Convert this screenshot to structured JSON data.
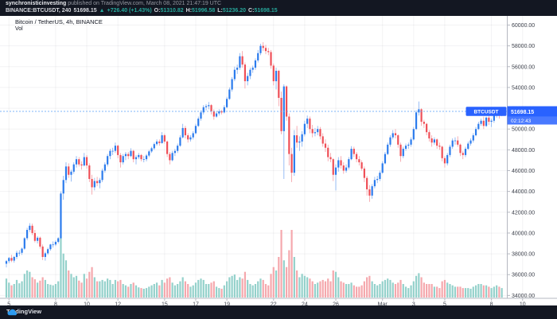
{
  "header": {
    "username": "synchronisticinvesting",
    "attribution": " published on TradingView.com, March 08, 2021 21:47:19 UTC",
    "symbol_interval": "BINANCE:BTCUSDT, 240",
    "last_price": "51698.15",
    "arrow": "▲",
    "change": "+726.40 (+1.43%)",
    "o_label": "O:",
    "o_value": "51310.82",
    "h_label": "H:",
    "h_value": "51996.58",
    "l_label": "L:",
    "l_value": "51236.20",
    "c_label": "C:",
    "c_value": "51698.15"
  },
  "chart": {
    "legend": "Bitcoin / TetherUS, 4h, BINANCE",
    "vol_label": "Vol",
    "price_label": {
      "tag": "BTCUSDT",
      "price": "51698.15",
      "countdown": "02:12:43"
    },
    "colors": {
      "accent": "#2962ff",
      "up_body": "#2b7bed",
      "up_wick": "#7fadf2",
      "down_body": "#ef4f57",
      "down_wick": "#f49ba2",
      "vol_up": "#94d1cb",
      "vol_down": "#f5a8ad",
      "grid": "rgba(19,23,34,0.05)",
      "axis_line": "#b5b8c1",
      "axis_text": "#3b3f4a",
      "last_line": "#60a5f7",
      "teal": "#26a69a"
    }
  },
  "footer": {
    "brand": "TradingView"
  },
  "chart_data": {
    "type": "candlestick+volume",
    "symbol": "BTCUSDT",
    "exchange": "BINANCE",
    "interval": "4h",
    "title": "Bitcoin / TetherUS, 4h, BINANCE",
    "last_price": 51698.15,
    "countdown": "02:12:43",
    "y_axis": {
      "min": 34000,
      "max": 60000,
      "tick_step": 2000
    },
    "y_tick_labels": [
      "60000.00",
      "58000.00",
      "56000.00",
      "54000.00",
      "52000.00",
      "50000.00",
      "48000.00",
      "46000.00",
      "44000.00",
      "42000.00",
      "40000.00",
      "38000.00",
      "36000.00",
      "34000.00"
    ],
    "x_ticks": [
      {
        "label": "5",
        "idx": 1
      },
      {
        "label": "8",
        "idx": 19
      },
      {
        "label": "10",
        "idx": 31
      },
      {
        "label": "12",
        "idx": 43
      },
      {
        "label": "15",
        "idx": 61
      },
      {
        "label": "17",
        "idx": 73
      },
      {
        "label": "19",
        "idx": 85
      },
      {
        "label": "22",
        "idx": 103
      },
      {
        "label": "24",
        "idx": 115
      },
      {
        "label": "26",
        "idx": 127
      },
      {
        "label": "Mar",
        "idx": 145
      },
      {
        "label": "3",
        "idx": 157
      },
      {
        "label": "5",
        "idx": 169
      },
      {
        "label": "8",
        "idx": 187
      },
      {
        "label": "10",
        "idx": 199
      }
    ],
    "candles_format": [
      "open",
      "high",
      "low",
      "close",
      "rel_volume"
    ],
    "candles": [
      [
        37050,
        37400,
        36700,
        37300,
        28
      ],
      [
        37300,
        37700,
        37100,
        37600,
        22
      ],
      [
        37600,
        37900,
        37200,
        37350,
        18
      ],
      [
        37350,
        37800,
        37150,
        37700,
        20
      ],
      [
        37700,
        38300,
        37500,
        38100,
        26
      ],
      [
        38100,
        38350,
        37800,
        38100,
        21
      ],
      [
        38100,
        38600,
        37900,
        38500,
        24
      ],
      [
        38500,
        39600,
        38400,
        39500,
        35
      ],
      [
        39500,
        40500,
        39300,
        40300,
        40
      ],
      [
        40300,
        40950,
        40100,
        40700,
        38
      ],
      [
        40700,
        40900,
        39800,
        40000,
        30
      ],
      [
        40000,
        40300,
        39100,
        39250,
        27
      ],
      [
        39250,
        39700,
        39000,
        39550,
        22
      ],
      [
        39550,
        39650,
        38500,
        38700,
        25
      ],
      [
        38700,
        38900,
        37400,
        37700,
        30
      ],
      [
        37700,
        38200,
        37350,
        38050,
        26
      ],
      [
        38050,
        38600,
        37900,
        38450,
        20
      ],
      [
        38450,
        38950,
        38300,
        38900,
        19
      ],
      [
        38900,
        39200,
        38600,
        38900,
        18
      ],
      [
        38900,
        39300,
        38750,
        39150,
        20
      ],
      [
        39150,
        39600,
        39000,
        39500,
        24
      ],
      [
        39500,
        44000,
        39400,
        43800,
        90
      ],
      [
        43800,
        45500,
        43200,
        45100,
        65
      ],
      [
        45100,
        46800,
        44800,
        46400,
        55
      ],
      [
        46400,
        46700,
        45300,
        45600,
        40
      ],
      [
        45600,
        46100,
        44950,
        45900,
        35
      ],
      [
        45900,
        46800,
        45700,
        46600,
        30
      ],
      [
        46600,
        47400,
        46300,
        47100,
        32
      ],
      [
        47100,
        47300,
        46400,
        46600,
        25
      ],
      [
        46600,
        46900,
        46100,
        46500,
        22
      ],
      [
        46500,
        47700,
        46400,
        47300,
        35
      ],
      [
        47300,
        47500,
        46200,
        46500,
        28
      ],
      [
        46500,
        46700,
        44900,
        45200,
        38
      ],
      [
        45200,
        45600,
        43700,
        44400,
        45
      ],
      [
        44400,
        45300,
        44100,
        45000,
        30
      ],
      [
        45000,
        45400,
        44500,
        44800,
        24
      ],
      [
        44800,
        45300,
        44300,
        45100,
        24
      ],
      [
        45100,
        46200,
        44900,
        46000,
        26
      ],
      [
        46000,
        46800,
        45800,
        46600,
        24
      ],
      [
        46600,
        47600,
        46400,
        47400,
        28
      ],
      [
        47400,
        48100,
        47100,
        47900,
        26
      ],
      [
        47900,
        48200,
        47500,
        47900,
        20
      ],
      [
        47900,
        48700,
        47700,
        48400,
        26
      ],
      [
        48400,
        48500,
        47200,
        47500,
        24
      ],
      [
        47500,
        47700,
        46300,
        46800,
        26
      ],
      [
        46800,
        47600,
        46600,
        47400,
        20
      ],
      [
        47400,
        47800,
        47000,
        47600,
        18
      ],
      [
        47600,
        47800,
        47100,
        47400,
        16
      ],
      [
        47400,
        48150,
        47300,
        47900,
        20
      ],
      [
        47900,
        48000,
        46800,
        47100,
        22
      ],
      [
        47100,
        47500,
        46600,
        47300,
        18
      ],
      [
        47300,
        47700,
        47100,
        47500,
        15
      ],
      [
        47500,
        47600,
        46900,
        47100,
        14
      ],
      [
        47100,
        47400,
        46800,
        47100,
        13
      ],
      [
        47100,
        47600,
        46900,
        47450,
        14
      ],
      [
        47450,
        48000,
        47300,
        47850,
        16
      ],
      [
        47850,
        48300,
        47700,
        48150,
        18
      ],
      [
        48150,
        48700,
        48000,
        48550,
        20
      ],
      [
        48550,
        49000,
        48400,
        48800,
        22
      ],
      [
        48800,
        49000,
        48400,
        48650,
        18
      ],
      [
        48650,
        49700,
        48600,
        49400,
        26
      ],
      [
        49400,
        49550,
        48600,
        48800,
        22
      ],
      [
        48800,
        48900,
        47300,
        47600,
        28
      ],
      [
        47600,
        47800,
        46600,
        47000,
        30
      ],
      [
        47000,
        47900,
        46900,
        47700,
        22
      ],
      [
        47700,
        48100,
        47400,
        47900,
        18
      ],
      [
        47900,
        48600,
        47700,
        48400,
        20
      ],
      [
        48400,
        49400,
        48300,
        49200,
        24
      ],
      [
        49200,
        50500,
        49100,
        50100,
        30
      ],
      [
        50100,
        50300,
        49100,
        49400,
        24
      ],
      [
        49400,
        49600,
        48700,
        49000,
        20
      ],
      [
        49000,
        49400,
        48800,
        49200,
        16
      ],
      [
        49200,
        49800,
        49000,
        49600,
        18
      ],
      [
        49600,
        50500,
        49500,
        50300,
        22
      ],
      [
        50300,
        51200,
        50200,
        51000,
        26
      ],
      [
        51000,
        51800,
        50800,
        51600,
        28
      ],
      [
        51600,
        52300,
        51400,
        52100,
        26
      ],
      [
        52100,
        52400,
        51800,
        52200,
        20
      ],
      [
        52200,
        52600,
        51900,
        52300,
        20
      ],
      [
        52300,
        52400,
        51400,
        51700,
        22
      ],
      [
        51700,
        51900,
        50900,
        51200,
        24
      ],
      [
        51200,
        51700,
        51100,
        51500,
        16
      ],
      [
        51500,
        51900,
        51300,
        51700,
        14
      ],
      [
        51700,
        51850,
        51400,
        51600,
        13
      ],
      [
        51600,
        52300,
        51500,
        52100,
        18
      ],
      [
        52100,
        53100,
        52000,
        52900,
        24
      ],
      [
        52900,
        54000,
        52800,
        53800,
        30
      ],
      [
        53800,
        55000,
        53600,
        54800,
        32
      ],
      [
        54800,
        56000,
        54600,
        55700,
        34
      ],
      [
        55700,
        56200,
        55300,
        55900,
        26
      ],
      [
        55900,
        57300,
        55700,
        57000,
        30
      ],
      [
        57000,
        57500,
        55900,
        56200,
        28
      ],
      [
        56200,
        56400,
        53900,
        54600,
        38
      ],
      [
        54600,
        55400,
        54200,
        55100,
        26
      ],
      [
        55100,
        55900,
        54800,
        55700,
        20
      ],
      [
        55700,
        56100,
        55400,
        55900,
        18
      ],
      [
        55900,
        56800,
        55700,
        56600,
        20
      ],
      [
        56600,
        57600,
        56400,
        57300,
        24
      ],
      [
        57300,
        58200,
        57100,
        58000,
        28
      ],
      [
        58000,
        58350,
        57500,
        57800,
        26
      ],
      [
        57800,
        58100,
        57200,
        57500,
        20
      ],
      [
        57500,
        57800,
        57100,
        57400,
        18
      ],
      [
        57400,
        57600,
        55800,
        56100,
        35
      ],
      [
        56100,
        56300,
        54200,
        54600,
        45
      ],
      [
        54600,
        55900,
        53800,
        55600,
        40
      ],
      [
        55600,
        55700,
        52200,
        53000,
        60
      ],
      [
        53000,
        53600,
        49500,
        49800,
        100
      ],
      [
        49800,
        54300,
        45200,
        54100,
        55
      ],
      [
        54100,
        54200,
        50800,
        51200,
        45
      ],
      [
        51200,
        51500,
        46500,
        47600,
        70
      ],
      [
        47600,
        48200,
        44900,
        45800,
        100
      ],
      [
        45800,
        49900,
        45500,
        49400,
        60
      ],
      [
        49400,
        50300,
        48200,
        48700,
        40
      ],
      [
        48700,
        49300,
        47900,
        48800,
        30
      ],
      [
        48800,
        49800,
        48300,
        49500,
        35
      ],
      [
        49500,
        50800,
        49300,
        50500,
        32
      ],
      [
        50500,
        51300,
        50100,
        51000,
        30
      ],
      [
        51000,
        51200,
        49600,
        50000,
        28
      ],
      [
        50000,
        50400,
        49200,
        49600,
        24
      ],
      [
        49600,
        50100,
        49300,
        49700,
        20
      ],
      [
        49700,
        50300,
        49400,
        50000,
        22
      ],
      [
        50000,
        50200,
        49000,
        49300,
        24
      ],
      [
        49300,
        49600,
        48300,
        48600,
        26
      ],
      [
        48600,
        49000,
        47800,
        48200,
        24
      ],
      [
        48200,
        48500,
        46900,
        47300,
        28
      ],
      [
        47300,
        47700,
        46800,
        47100,
        24
      ],
      [
        47100,
        47200,
        45000,
        45600,
        40
      ],
      [
        45600,
        46600,
        44100,
        46300,
        38
      ],
      [
        46300,
        47300,
        45900,
        47000,
        30
      ],
      [
        47000,
        47400,
        46200,
        46500,
        24
      ],
      [
        46500,
        46800,
        45700,
        46000,
        22
      ],
      [
        46000,
        46600,
        45800,
        46300,
        20
      ],
      [
        46300,
        47300,
        46100,
        47100,
        20
      ],
      [
        47100,
        48350,
        47000,
        48100,
        22
      ],
      [
        48100,
        48300,
        47300,
        47600,
        18
      ],
      [
        47600,
        47800,
        46800,
        47100,
        16
      ],
      [
        47100,
        47400,
        46500,
        46800,
        16
      ],
      [
        46800,
        47000,
        46000,
        46200,
        18
      ],
      [
        46200,
        46400,
        44900,
        45300,
        24
      ],
      [
        45300,
        45500,
        43600,
        44200,
        30
      ],
      [
        44200,
        44600,
        43000,
        43600,
        32
      ],
      [
        43600,
        44700,
        43300,
        44500,
        24
      ],
      [
        44500,
        45400,
        44300,
        45100,
        20
      ],
      [
        45100,
        45500,
        44800,
        45200,
        18
      ],
      [
        45200,
        46000,
        45000,
        45800,
        20
      ],
      [
        45800,
        46900,
        45700,
        46700,
        24
      ],
      [
        46700,
        47800,
        46600,
        47600,
        26
      ],
      [
        47600,
        48700,
        47500,
        48500,
        28
      ],
      [
        48500,
        49400,
        48300,
        49200,
        26
      ],
      [
        49200,
        49900,
        49000,
        49600,
        22
      ],
      [
        49600,
        50000,
        49100,
        49400,
        20
      ],
      [
        49400,
        49500,
        48200,
        48500,
        22
      ],
      [
        48500,
        48700,
        46850,
        47400,
        26
      ],
      [
        47400,
        48300,
        47200,
        48100,
        20
      ],
      [
        48100,
        48600,
        47900,
        48400,
        16
      ],
      [
        48400,
        48700,
        48100,
        48500,
        14
      ],
      [
        48500,
        49200,
        48300,
        49000,
        18
      ],
      [
        49000,
        50200,
        48900,
        50000,
        24
      ],
      [
        50000,
        51800,
        49900,
        51600,
        32
      ],
      [
        51600,
        52650,
        51300,
        51900,
        36
      ],
      [
        51900,
        52000,
        50300,
        50700,
        30
      ],
      [
        50700,
        50900,
        50100,
        50500,
        22
      ],
      [
        50500,
        50600,
        49400,
        49700,
        20
      ],
      [
        49700,
        49900,
        48800,
        49100,
        20
      ],
      [
        49100,
        49400,
        48300,
        48700,
        20
      ],
      [
        48700,
        49200,
        48500,
        49000,
        16
      ],
      [
        49000,
        49100,
        48100,
        48400,
        16
      ],
      [
        48400,
        48700,
        48000,
        48300,
        14
      ],
      [
        48300,
        48400,
        46900,
        47200,
        24
      ],
      [
        47200,
        47400,
        46300,
        46700,
        26
      ],
      [
        46700,
        47700,
        46500,
        47500,
        22
      ],
      [
        47500,
        48500,
        47300,
        48300,
        20
      ],
      [
        48300,
        49100,
        48100,
        48900,
        18
      ],
      [
        48900,
        49200,
        48500,
        48900,
        16
      ],
      [
        48900,
        49300,
        48300,
        48500,
        16
      ],
      [
        48500,
        48600,
        47400,
        47700,
        16
      ],
      [
        47700,
        47900,
        47100,
        47500,
        14
      ],
      [
        47500,
        48300,
        47300,
        48100,
        14
      ],
      [
        48100,
        48800,
        48000,
        48600,
        14
      ],
      [
        48600,
        49100,
        48400,
        48900,
        13
      ],
      [
        48900,
        49600,
        48700,
        49400,
        16
      ],
      [
        49400,
        50200,
        49300,
        50000,
        18
      ],
      [
        50000,
        50700,
        49900,
        50500,
        20
      ],
      [
        50500,
        51000,
        50300,
        50800,
        20
      ],
      [
        50800,
        51200,
        50000,
        50300,
        18
      ],
      [
        50300,
        51200,
        50200,
        51100,
        18
      ],
      [
        51100,
        51400,
        50400,
        50700,
        16
      ],
      [
        50700,
        51000,
        50200,
        50800,
        14
      ],
      [
        50800,
        51500,
        50600,
        51300,
        16
      ],
      [
        51300,
        52000,
        51100,
        51800,
        18
      ],
      [
        51800,
        51900,
        51000,
        51310,
        16
      ],
      [
        51310,
        51996,
        51236,
        51698,
        14
      ]
    ]
  }
}
